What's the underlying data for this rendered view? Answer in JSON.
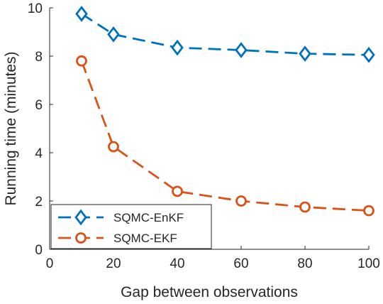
{
  "chart_data": {
    "type": "line",
    "title": "",
    "xlabel": "Gap between observations",
    "ylabel": "Running time (minutes)",
    "xlim": [
      0,
      100
    ],
    "ylim": [
      0,
      10
    ],
    "xticks": [
      0,
      20,
      40,
      60,
      80,
      100
    ],
    "yticks": [
      0,
      2,
      4,
      6,
      8,
      10
    ],
    "x": [
      10,
      20,
      40,
      60,
      80,
      100
    ],
    "grid": false,
    "legend_position": "bottom-left",
    "series": [
      {
        "name": "SQMC-EnKF",
        "values": [
          9.75,
          8.9,
          8.35,
          8.25,
          8.1,
          8.05
        ],
        "color": "#0072BD",
        "marker": "diamond",
        "line_style": "dashed"
      },
      {
        "name": "SQMC-EKF",
        "values": [
          7.8,
          4.25,
          2.4,
          2.0,
          1.75,
          1.6
        ],
        "color": "#D95319",
        "marker": "circle",
        "line_style": "dashed"
      }
    ]
  }
}
